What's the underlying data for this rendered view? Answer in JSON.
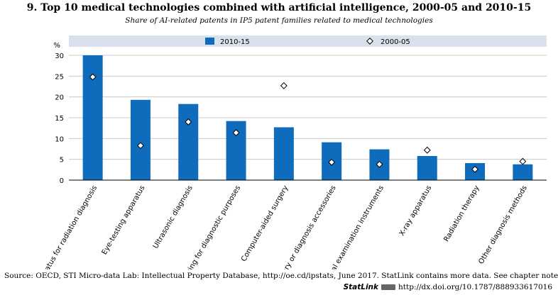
{
  "header": {
    "title": "9. Top 10 medical technologies combined with artificial intelligence, 2000-05 and 2010-15",
    "subtitle": "Share of AI-related patents in IP5 patent families related to medical technologies"
  },
  "footer": {
    "source": "Source: OECD, STI Micro-data Lab: Intellectual Property Database, http://oe.cd/ipstats, June 2017. StatLink contains more data. See chapter notes.",
    "statlink_label": "StatLink",
    "statlink_url": "http://dx.doi.org/10.1787/888933617016"
  },
  "colors": {
    "bar": "#0f6cbd",
    "marker_fill": "#ffffff",
    "marker_stroke": "#000000",
    "grid": "#c8c8c8",
    "plot_bg": "#ffffff",
    "band_bg": "#d9e2ec"
  },
  "chart_data": {
    "type": "bar",
    "categories": [
      "Apparatus for radiation diagnosis",
      "Eye-testing apparatus",
      "Ultrasonic diagnosis",
      "Measuring for diagnostic purposes",
      "Computer-aided surgery",
      "Surgery or diagnosis accessories",
      "Medical examination instruments",
      "X-ray apparatus",
      "Radiation therapy",
      "Other diagnosis methods"
    ],
    "series": [
      {
        "name": "2010-15",
        "type": "bar",
        "values": [
          30.0,
          19.3,
          18.3,
          14.2,
          12.7,
          9.1,
          7.4,
          5.8,
          4.1,
          3.8
        ]
      },
      {
        "name": "2000-05",
        "type": "marker",
        "values": [
          24.8,
          8.3,
          14.0,
          11.4,
          22.7,
          4.3,
          3.8,
          7.2,
          2.6,
          4.5
        ]
      }
    ],
    "ylabel": "%",
    "ylim": [
      0,
      30
    ],
    "yticks": [
      0,
      5,
      10,
      15,
      20,
      25,
      30
    ],
    "grid": true,
    "legend_position": "top"
  }
}
